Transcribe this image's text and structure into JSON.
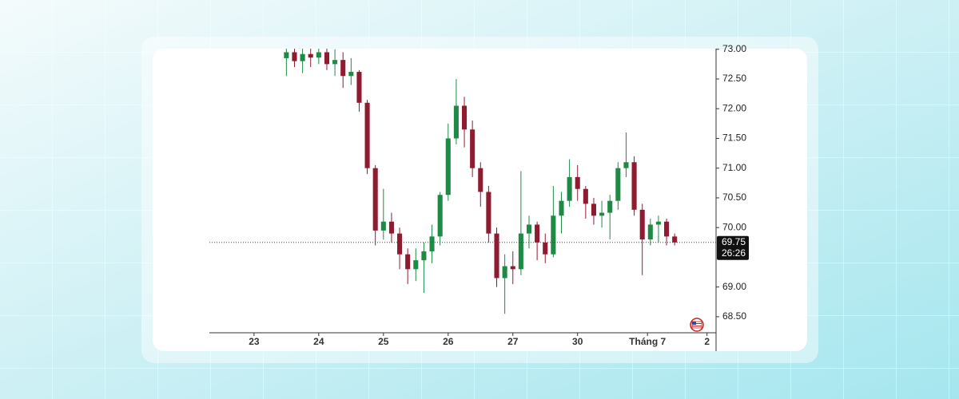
{
  "chart_data": {
    "type": "candlestick",
    "up_color": "#1e8a45",
    "down_color": "#8e1b30",
    "x": [
      0.5,
      0.625,
      0.75,
      0.875,
      1.0,
      1.125,
      1.25,
      1.375,
      1.5,
      1.625,
      1.75,
      1.875,
      2.0,
      2.125,
      2.25,
      2.375,
      2.5,
      2.625,
      2.75,
      2.875,
      3.0,
      3.125,
      3.25,
      3.375,
      3.5,
      3.625,
      3.75,
      3.875,
      4.0,
      4.125,
      4.25,
      4.375,
      4.5,
      4.625,
      4.75,
      4.875,
      5.0,
      5.125,
      5.25,
      5.375,
      5.5,
      5.625,
      5.75,
      5.875,
      6.0,
      6.125,
      6.25,
      6.375,
      6.5
    ],
    "open": [
      72.85,
      72.95,
      72.8,
      72.92,
      72.86,
      72.95,
      72.75,
      72.82,
      72.55,
      72.62,
      72.1,
      71.0,
      69.95,
      70.1,
      69.9,
      69.55,
      69.3,
      69.45,
      69.6,
      69.85,
      70.55,
      71.5,
      72.05,
      71.65,
      71.0,
      70.6,
      69.9,
      69.15,
      69.35,
      69.3,
      69.9,
      70.05,
      69.75,
      69.55,
      70.2,
      70.45,
      70.85,
      70.65,
      70.4,
      70.2,
      70.25,
      70.45,
      71.0,
      71.1,
      70.3,
      69.8,
      70.05,
      70.1,
      69.85
    ],
    "high": [
      73.1,
      73.1,
      73.05,
      73.05,
      73.1,
      73.05,
      73.0,
      72.95,
      72.85,
      72.65,
      72.15,
      71.05,
      70.65,
      70.25,
      70.0,
      69.65,
      69.65,
      69.75,
      70.05,
      70.6,
      71.75,
      72.5,
      72.2,
      71.8,
      71.1,
      70.7,
      70.0,
      69.55,
      69.6,
      70.95,
      70.2,
      70.1,
      69.9,
      70.7,
      70.6,
      71.15,
      71.05,
      70.7,
      70.5,
      70.45,
      70.55,
      71.1,
      71.6,
      71.2,
      70.4,
      70.15,
      70.2,
      70.15,
      69.9
    ],
    "low": [
      72.55,
      72.7,
      72.6,
      72.7,
      72.75,
      72.65,
      72.55,
      72.35,
      72.4,
      71.95,
      70.9,
      69.7,
      69.8,
      69.75,
      69.3,
      69.05,
      69.1,
      68.9,
      69.4,
      69.7,
      70.45,
      71.4,
      71.35,
      70.85,
      70.35,
      69.75,
      69.0,
      68.55,
      69.05,
      69.2,
      69.65,
      69.45,
      69.4,
      69.5,
      69.9,
      70.35,
      70.45,
      70.15,
      70.05,
      70.0,
      69.8,
      70.3,
      70.85,
      70.2,
      69.2,
      69.7,
      69.75,
      69.7,
      69.7
    ],
    "close": [
      72.95,
      72.8,
      72.92,
      72.86,
      72.95,
      72.75,
      72.82,
      72.55,
      72.62,
      72.1,
      71.0,
      69.95,
      70.1,
      69.9,
      69.55,
      69.3,
      69.45,
      69.6,
      69.85,
      70.55,
      71.5,
      72.05,
      71.65,
      71.0,
      70.6,
      69.9,
      69.15,
      69.35,
      69.3,
      69.9,
      70.05,
      69.75,
      69.55,
      70.2,
      70.45,
      70.85,
      70.65,
      70.4,
      70.2,
      70.25,
      70.45,
      71.0,
      71.1,
      70.3,
      69.8,
      70.05,
      70.1,
      69.85,
      69.75
    ],
    "xlim": [
      -0.69,
      7.14
    ],
    "xticks": [
      {
        "value": 0,
        "label": "23"
      },
      {
        "value": 1,
        "label": "24"
      },
      {
        "value": 2,
        "label": "25"
      },
      {
        "value": 3,
        "label": "26"
      },
      {
        "value": 4,
        "label": "27"
      },
      {
        "value": 5,
        "label": "30"
      },
      {
        "value": 6.08,
        "label": "Tháng 7"
      },
      {
        "value": 7,
        "label": "2"
      }
    ],
    "ylim": [
      68.23,
      73.01
    ],
    "yticks": [
      {
        "value": 68.5,
        "label": "68.50"
      },
      {
        "value": 69,
        "label": "69.00"
      },
      {
        "value": 70,
        "label": "70.00"
      },
      {
        "value": 70.5,
        "label": "70.50"
      },
      {
        "value": 71,
        "label": "71.00"
      },
      {
        "value": 71.5,
        "label": "71.50"
      },
      {
        "value": 72,
        "label": "72.00"
      },
      {
        "value": 72.5,
        "label": "72.50"
      },
      {
        "value": 73,
        "label": "73.00"
      }
    ],
    "last_price": 69.75,
    "countdown": "26:26"
  }
}
